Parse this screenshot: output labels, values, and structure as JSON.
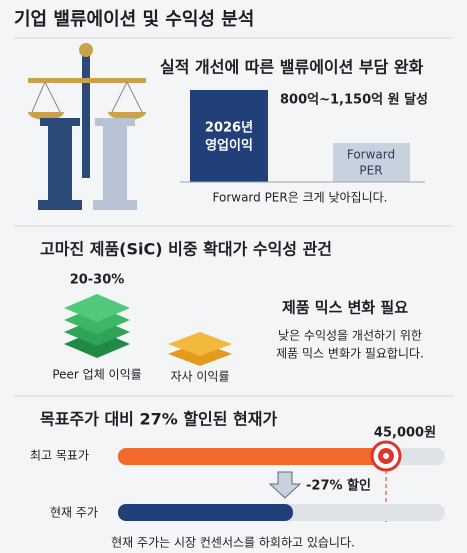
{
  "header": {
    "title": "기업 밸류에이션 및 수익성 분석"
  },
  "valuation": {
    "heading": "실적 개선에 따른 밸류에이션 부담 완화",
    "profit_box": [
      "2026년",
      "영업이익"
    ],
    "profit_range": "800억~1,150억 원 달성",
    "per_box": [
      "Forward",
      "PER"
    ],
    "caption": "Forward PER은 크게 낮아집니다."
  },
  "margin": {
    "heading": "고마진 제품(SiC) 비중 확대가 수익성 관건",
    "peer_range": "20-30%",
    "peer_label": "Peer 업체 이익률",
    "own_label": "자사 이익률",
    "need_title": "제품 믹스 변화 필요",
    "need_text": [
      "낮은 수익성을 개선하기 위한",
      "제품 믹스 변화가 필요합니다."
    ]
  },
  "price": {
    "heading": "목표주가 대비 27% 할인된 현재가",
    "target_price": "45,000원",
    "target_label": "최고 목표가",
    "discount": "-27% 할인",
    "current_label": "현재 주가",
    "caption": "현재 주가는 시장 컨센서스를 하회하고 있습니다."
  }
}
